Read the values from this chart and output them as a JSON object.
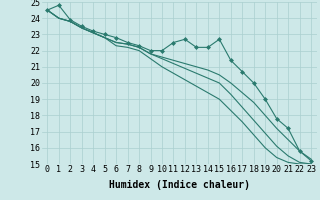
{
  "xlabel": "Humidex (Indice chaleur)",
  "x": [
    0,
    1,
    2,
    3,
    4,
    5,
    6,
    7,
    8,
    9,
    10,
    11,
    12,
    13,
    14,
    15,
    16,
    17,
    18,
    19,
    20,
    21,
    22,
    23
  ],
  "series": [
    [
      24.5,
      24.8,
      23.9,
      23.5,
      23.2,
      23.0,
      22.8,
      22.5,
      22.3,
      22.0,
      22.0,
      22.5,
      22.7,
      22.2,
      22.2,
      22.7,
      21.4,
      20.7,
      20.0,
      19.0,
      17.8,
      17.2,
      15.8,
      15.2
    ],
    [
      24.5,
      24.0,
      23.8,
      23.4,
      23.1,
      22.8,
      22.5,
      22.4,
      22.2,
      21.8,
      21.6,
      21.4,
      21.2,
      21.0,
      20.8,
      20.5,
      20.0,
      19.4,
      18.8,
      18.0,
      17.2,
      16.5,
      15.8,
      15.3
    ],
    [
      24.5,
      24.0,
      23.8,
      23.4,
      23.1,
      22.8,
      22.3,
      22.2,
      22.0,
      21.5,
      21.0,
      20.6,
      20.2,
      19.8,
      19.4,
      19.0,
      18.3,
      17.6,
      16.8,
      16.0,
      15.4,
      15.1,
      15.0,
      15.0
    ],
    [
      24.5,
      24.0,
      23.8,
      23.4,
      23.1,
      22.8,
      22.5,
      22.4,
      22.2,
      21.8,
      21.5,
      21.2,
      20.9,
      20.6,
      20.3,
      20.0,
      19.3,
      18.5,
      17.7,
      16.9,
      16.1,
      15.5,
      15.1,
      15.0
    ]
  ],
  "markers_series": 0,
  "line_color": "#2a7a6e",
  "marker": "D",
  "marker_size": 2.0,
  "ylim": [
    15,
    25
  ],
  "yticks": [
    15,
    16,
    17,
    18,
    19,
    20,
    21,
    22,
    23,
    24,
    25
  ],
  "bg_color": "#cde8e8",
  "grid_color": "#aacfcf",
  "axis_fontsize": 6,
  "tick_fontsize": 6,
  "xlabel_fontsize": 7
}
